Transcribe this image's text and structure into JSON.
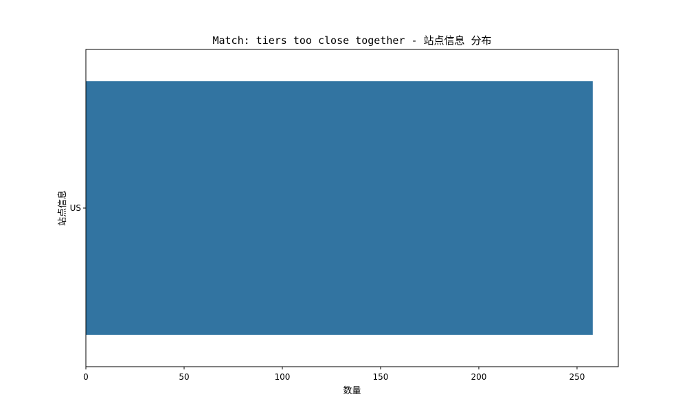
{
  "chart_data": {
    "type": "bar",
    "orientation": "horizontal",
    "title": "Match: tiers too close together - 站点信息 分布",
    "xlabel": "数量",
    "ylabel": "站点信息",
    "categories": [
      "US"
    ],
    "values": [
      258
    ],
    "xlim": [
      0,
      271
    ],
    "xticks": [
      0,
      50,
      100,
      150,
      200,
      250
    ],
    "grid": false,
    "legend": "none",
    "bar_color": "#3274a1"
  }
}
